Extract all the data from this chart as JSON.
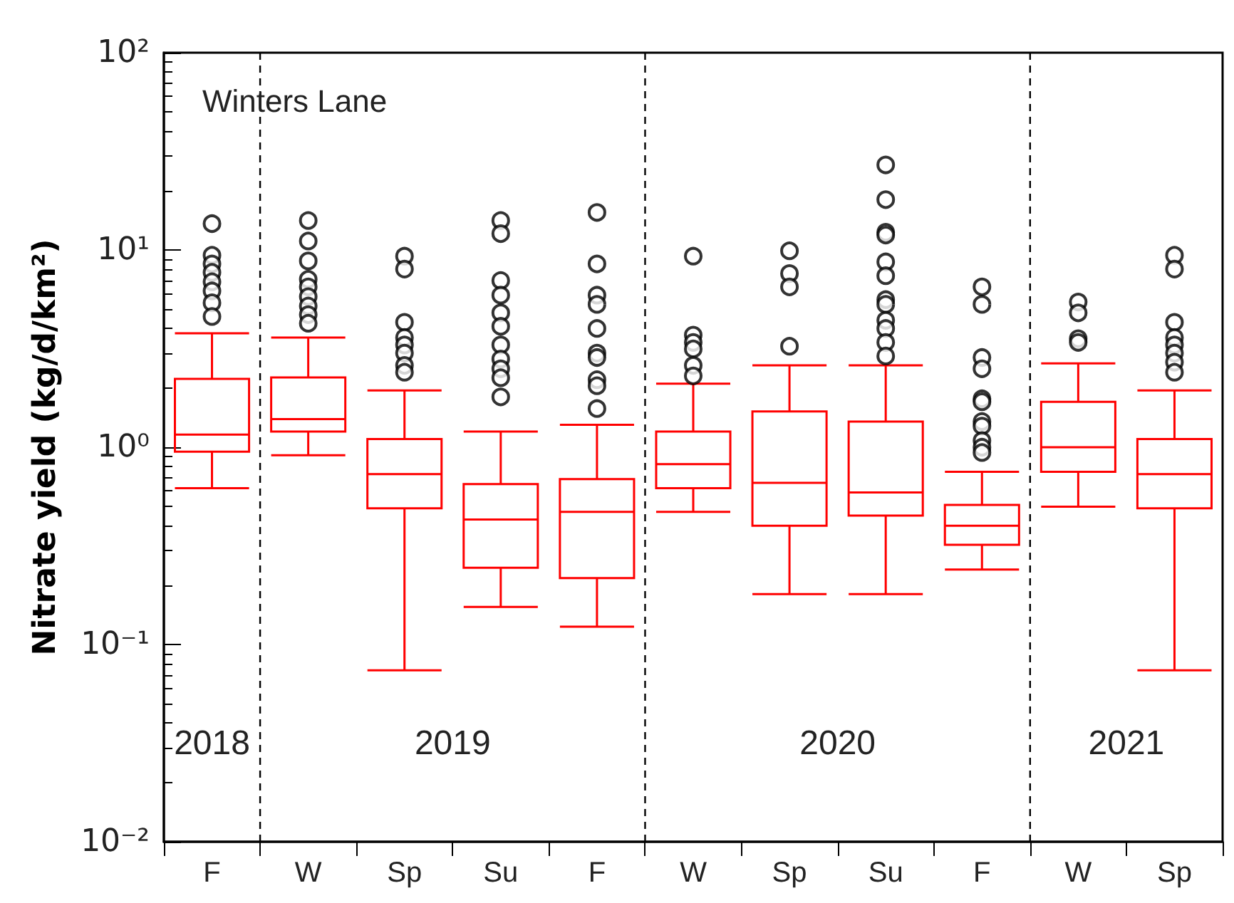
{
  "chart_data": {
    "type": "box",
    "title": "Winters Lane",
    "ylabel": "Nitrate yield (kg/d/km²)",
    "categories": [
      "F",
      "W",
      "Sp",
      "Su",
      "F",
      "W",
      "Sp",
      "Su",
      "F",
      "W",
      "Sp"
    ],
    "log": true,
    "ylim": [
      0.01,
      100
    ],
    "yticks": [
      {
        "value": 0.01,
        "label": "10⁻²"
      },
      {
        "value": 0.1,
        "label": "10⁻¹"
      },
      {
        "value": 1,
        "label": "10⁰"
      },
      {
        "value": 10,
        "label": "10¹"
      },
      {
        "value": 100,
        "label": "10²"
      }
    ],
    "grid": false,
    "marker": "circle",
    "annotations": [
      "2018",
      "2019",
      "2020",
      "2021"
    ],
    "series": [
      {
        "color": "#ff0000",
        "boxes": [
          {
            "low": 0.62,
            "q1": 0.95,
            "median": 1.16,
            "q3": 2.22,
            "high": 3.78,
            "outliers": [
              13.6,
              9.4,
              8.5,
              7.7,
              6.9,
              6.2,
              5.4,
              4.6
            ]
          },
          {
            "low": 0.91,
            "q1": 1.2,
            "median": 1.39,
            "q3": 2.26,
            "high": 3.6,
            "outliers": [
              14.1,
              11.1,
              8.8,
              7.1,
              6.5,
              5.8,
              5.2,
              4.7,
              4.25
            ]
          },
          {
            "low": 0.074,
            "q1": 0.49,
            "median": 0.73,
            "q3": 1.1,
            "high": 1.94,
            "outliers": [
              9.3,
              8.0,
              4.3,
              3.6,
              3.3,
              3.0,
              2.6,
              2.4
            ]
          },
          {
            "low": 0.155,
            "q1": 0.245,
            "median": 0.43,
            "q3": 0.65,
            "high": 1.2,
            "outliers": [
              14.1,
              12.1,
              7.0,
              5.9,
              4.8,
              4.1,
              3.3,
              2.8,
              2.5,
              2.25,
              1.8
            ]
          },
          {
            "low": 0.123,
            "q1": 0.217,
            "median": 0.47,
            "q3": 0.69,
            "high": 1.3,
            "outliers": [
              15.5,
              8.5,
              5.9,
              5.3,
              4.0,
              3.0,
              2.85,
              2.2,
              2.05,
              1.57
            ]
          },
          {
            "low": 0.47,
            "q1": 0.62,
            "median": 0.82,
            "q3": 1.2,
            "high": 2.1,
            "outliers": [
              9.3,
              3.7,
              3.4,
              3.15,
              2.6,
              2.3
            ]
          },
          {
            "low": 0.18,
            "q1": 0.4,
            "median": 0.66,
            "q3": 1.52,
            "high": 2.6,
            "outliers": [
              9.9,
              7.6,
              6.5,
              3.25
            ]
          },
          {
            "low": 0.18,
            "q1": 0.45,
            "median": 0.59,
            "q3": 1.35,
            "high": 2.6,
            "outliers": [
              27,
              18,
              12.3,
              11.9,
              8.7,
              7.4,
              5.6,
              5.3,
              4.4,
              4.0,
              3.4,
              2.9
            ]
          },
          {
            "low": 0.24,
            "q1": 0.32,
            "median": 0.4,
            "q3": 0.51,
            "high": 0.75,
            "outliers": [
              6.5,
              5.3,
              2.85,
              2.5,
              1.76,
              1.7,
              1.35,
              1.28,
              1.08,
              1.0,
              0.94
            ]
          },
          {
            "low": 0.5,
            "q1": 0.75,
            "median": 1.0,
            "q3": 1.7,
            "high": 2.66,
            "outliers": [
              5.45,
              4.8,
              3.55,
              3.4
            ]
          },
          {
            "low": 0.074,
            "q1": 0.49,
            "median": 0.73,
            "q3": 1.1,
            "high": 1.94,
            "outliers": [
              9.4,
              8.0,
              4.3,
              3.6,
              3.3,
              3.0,
              2.7,
              2.4
            ]
          }
        ]
      }
    ]
  }
}
